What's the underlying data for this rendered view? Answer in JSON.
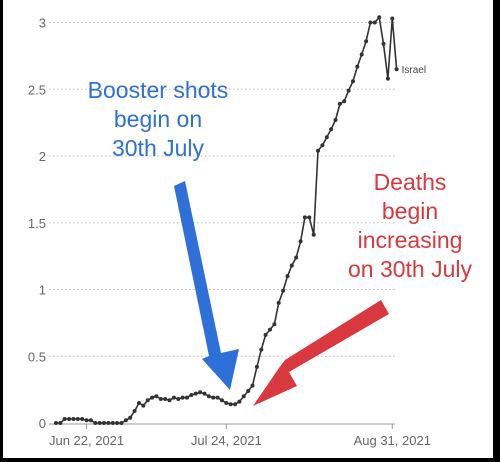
{
  "chart_data": {
    "type": "line",
    "title": "",
    "xlabel": "",
    "ylabel": "",
    "x_ticks": [
      "Jun 22, 2021",
      "Jul 24, 2021",
      "Aug 31, 2021"
    ],
    "y_ticks": [
      "0",
      "0.5",
      "1",
      "1.5",
      "2",
      "2.5",
      "3"
    ],
    "ylim": [
      0,
      3.05
    ],
    "xlim": [
      "2021-06-15",
      "2021-09-02"
    ],
    "grid": "horizontal-dotted",
    "series": [
      {
        "name": "Israel",
        "color": "#333333",
        "points": [
          [
            "2021-06-15",
            0.0
          ],
          [
            "2021-06-16",
            0.0
          ],
          [
            "2021-06-17",
            0.03
          ],
          [
            "2021-06-18",
            0.03
          ],
          [
            "2021-06-19",
            0.03
          ],
          [
            "2021-06-20",
            0.03
          ],
          [
            "2021-06-21",
            0.03
          ],
          [
            "2021-06-22",
            0.02
          ],
          [
            "2021-06-23",
            0.02
          ],
          [
            "2021-06-24",
            0.0
          ],
          [
            "2021-06-25",
            0.0
          ],
          [
            "2021-06-26",
            0.0
          ],
          [
            "2021-06-27",
            0.0
          ],
          [
            "2021-06-28",
            0.0
          ],
          [
            "2021-06-29",
            0.0
          ],
          [
            "2021-06-30",
            0.0
          ],
          [
            "2021-07-01",
            0.02
          ],
          [
            "2021-07-02",
            0.04
          ],
          [
            "2021-07-03",
            0.09
          ],
          [
            "2021-07-04",
            0.15
          ],
          [
            "2021-07-05",
            0.13
          ],
          [
            "2021-07-06",
            0.17
          ],
          [
            "2021-07-07",
            0.19
          ],
          [
            "2021-07-08",
            0.2
          ],
          [
            "2021-07-09",
            0.18
          ],
          [
            "2021-07-10",
            0.18
          ],
          [
            "2021-07-11",
            0.17
          ],
          [
            "2021-07-12",
            0.19
          ],
          [
            "2021-07-13",
            0.18
          ],
          [
            "2021-07-14",
            0.19
          ],
          [
            "2021-07-15",
            0.19
          ],
          [
            "2021-07-16",
            0.21
          ],
          [
            "2021-07-17",
            0.22
          ],
          [
            "2021-07-18",
            0.23
          ],
          [
            "2021-07-19",
            0.22
          ],
          [
            "2021-07-20",
            0.2
          ],
          [
            "2021-07-21",
            0.19
          ],
          [
            "2021-07-22",
            0.19
          ],
          [
            "2021-07-23",
            0.17
          ],
          [
            "2021-07-24",
            0.15
          ],
          [
            "2021-07-25",
            0.14
          ],
          [
            "2021-07-26",
            0.14
          ],
          [
            "2021-07-27",
            0.16
          ],
          [
            "2021-07-28",
            0.2
          ],
          [
            "2021-07-29",
            0.24
          ],
          [
            "2021-07-30",
            0.28
          ],
          [
            "2021-07-31",
            0.42
          ],
          [
            "2021-08-01",
            0.55
          ],
          [
            "2021-08-02",
            0.66
          ],
          [
            "2021-08-03",
            0.7
          ],
          [
            "2021-08-04",
            0.74
          ],
          [
            "2021-08-05",
            0.9
          ],
          [
            "2021-08-06",
            0.99
          ],
          [
            "2021-08-07",
            1.1
          ],
          [
            "2021-08-08",
            1.18
          ],
          [
            "2021-08-09",
            1.24
          ],
          [
            "2021-08-10",
            1.36
          ],
          [
            "2021-08-11",
            1.54
          ],
          [
            "2021-08-12",
            1.54
          ],
          [
            "2021-08-13",
            1.41
          ],
          [
            "2021-08-14",
            2.04
          ],
          [
            "2021-08-15",
            2.08
          ],
          [
            "2021-08-16",
            2.14
          ],
          [
            "2021-08-17",
            2.2
          ],
          [
            "2021-08-18",
            2.27
          ],
          [
            "2021-08-19",
            2.39
          ],
          [
            "2021-08-20",
            2.41
          ],
          [
            "2021-08-21",
            2.49
          ],
          [
            "2021-08-22",
            2.56
          ],
          [
            "2021-08-23",
            2.67
          ],
          [
            "2021-08-24",
            2.76
          ],
          [
            "2021-08-25",
            2.86
          ],
          [
            "2021-08-26",
            3.0
          ],
          [
            "2021-08-27",
            3.0
          ],
          [
            "2021-08-28",
            3.04
          ],
          [
            "2021-08-29",
            2.84
          ],
          [
            "2021-08-30",
            2.58
          ],
          [
            "2021-08-31",
            3.03
          ],
          [
            "2021-09-01",
            2.65
          ]
        ]
      }
    ],
    "annotations": [
      {
        "id": "booster",
        "lines": [
          "Booster shots",
          "begin on",
          "30th July"
        ],
        "color": "#2e6fd8"
      },
      {
        "id": "deaths",
        "lines": [
          "Deaths",
          "begin",
          "increasing",
          "on 30th July"
        ],
        "color": "#d9383e"
      }
    ]
  }
}
